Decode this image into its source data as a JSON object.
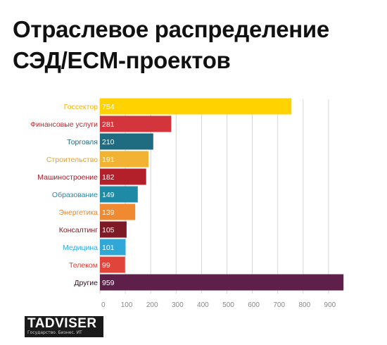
{
  "title_lines": [
    "Отраслевое распределение",
    "СЭД/ECM-проектов"
  ],
  "logo": {
    "name": "TADVISER",
    "tagline": "Государство. Бизнес. ИТ"
  },
  "chart_data": {
    "type": "bar",
    "orientation": "horizontal",
    "title": "Отраслевое распределение СЭД/ECM-проектов",
    "categories": [
      "Госсектор",
      "Финансовые услуги",
      "Торговля",
      "Строительство",
      "Машиностроение",
      "Образование",
      "Энергетика",
      "Консалтинг",
      "Медицина",
      "Телеком",
      "Другие"
    ],
    "values": [
      754,
      281,
      210,
      191,
      182,
      149,
      139,
      105,
      101,
      99,
      959
    ],
    "bar_colors": [
      "#ffd200",
      "#d2363c",
      "#1f6b7f",
      "#f2b234",
      "#b3202a",
      "#1f8aa6",
      "#f08a30",
      "#7d1a26",
      "#2fa8d8",
      "#e0443a",
      "#5e1f4a"
    ],
    "label_colors": [
      "#f0b400",
      "#c0282e",
      "#1f6b7f",
      "#e8a020",
      "#a01c26",
      "#1f8aa6",
      "#ec8328",
      "#7d1a26",
      "#2fa8d8",
      "#d83a30",
      "#2a1020"
    ],
    "xticks": [
      0,
      100,
      200,
      300,
      400,
      500,
      600,
      700,
      800,
      900
    ],
    "xlim": [
      0,
      1000
    ],
    "xlabel": "",
    "ylabel": "",
    "grid": true,
    "legend": "none"
  }
}
